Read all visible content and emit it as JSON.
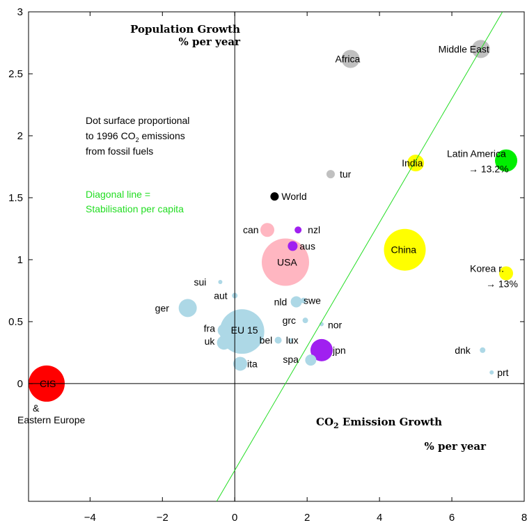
{
  "chart_data": {
    "type": "scatter",
    "xlim": [
      -5.7,
      8
    ],
    "ylim": [
      -0.95,
      3
    ],
    "x_ticks": [
      {
        "value": -4,
        "label": "−4"
      },
      {
        "value": -2,
        "label": "−2"
      },
      {
        "value": 0,
        "label": "0"
      },
      {
        "value": 2,
        "label": "2"
      },
      {
        "value": 4,
        "label": "4"
      },
      {
        "value": 6,
        "label": "6"
      },
      {
        "value": 8,
        "label": "8"
      }
    ],
    "y_ticks": [
      {
        "value": 0,
        "label": "0"
      },
      {
        "value": 0.5,
        "label": "0.5"
      },
      {
        "value": 1,
        "label": "1"
      },
      {
        "value": 1.5,
        "label": "1.5"
      },
      {
        "value": 2,
        "label": "2"
      },
      {
        "value": 2.5,
        "label": "2.5"
      },
      {
        "value": 3,
        "label": "3"
      }
    ],
    "y_axis_title": [
      "Population Growth",
      "% per year"
    ],
    "x_axis_title": {
      "prefix": "CO",
      "sub": "2",
      "rest": " Emission Growth",
      "line2": "% per year"
    },
    "note_lines": [
      {
        "text": "Dot surface proportional"
      },
      {
        "text": "to 1996 CO",
        "sub": "2",
        "after": " emissions"
      },
      {
        "text": "from fossil fuels"
      }
    ],
    "diagonal_note": [
      "Diagonal line =",
      "Stabilisation per capita"
    ],
    "diagonal_line": {
      "from": [
        -0.5,
        -0.95
      ],
      "to": [
        7.4,
        3
      ]
    },
    "grid": false,
    "colors": {
      "oecd": "#add8e6",
      "cis": "#ff0000",
      "asia": "#ffff00",
      "latin": "#00ee00",
      "africa_me": "#c0c0c0",
      "pacific": "#a020f0",
      "canusa": "#ffb6c1",
      "world": "#000000",
      "diagonal": "#22dd22"
    },
    "points": [
      {
        "name": "CIS",
        "x": -5.2,
        "y": 0.0,
        "r": 26,
        "color": "#ff0000"
      },
      {
        "name": "Middle East",
        "x": 6.8,
        "y": 2.7,
        "r": 13,
        "color": "#c0c0c0"
      },
      {
        "name": "Africa",
        "x": 3.2,
        "y": 2.62,
        "r": 13,
        "color": "#c0c0c0"
      },
      {
        "name": "Latin America",
        "x": 7.5,
        "y": 1.8,
        "r": 16,
        "color": "#00ee00"
      },
      {
        "name": "India",
        "x": 5.0,
        "y": 1.78,
        "r": 12,
        "color": "#ffff00"
      },
      {
        "name": "tur",
        "x": 2.65,
        "y": 1.69,
        "r": 6,
        "color": "#c0c0c0"
      },
      {
        "name": "World",
        "x": 1.1,
        "y": 1.51,
        "r": 6,
        "color": "#000000"
      },
      {
        "name": "can",
        "x": 0.9,
        "y": 1.24,
        "r": 10,
        "color": "#ffb6c1"
      },
      {
        "name": "nzl",
        "x": 1.75,
        "y": 1.24,
        "r": 5,
        "color": "#a020f0"
      },
      {
        "name": "aus",
        "x": 1.6,
        "y": 1.11,
        "r": 7,
        "color": "#a020f0"
      },
      {
        "name": "China",
        "x": 4.7,
        "y": 1.08,
        "r": 30,
        "color": "#ffff00"
      },
      {
        "name": "USA",
        "x": 1.4,
        "y": 0.98,
        "r": 34,
        "color": "#ffb6c1"
      },
      {
        "name": "Korea r.",
        "x": 7.5,
        "y": 0.89,
        "r": 10,
        "color": "#ffff00"
      },
      {
        "name": "sui",
        "x": -0.4,
        "y": 0.82,
        "r": 3,
        "color": "#add8e6"
      },
      {
        "name": "aut",
        "x": 0.0,
        "y": 0.71,
        "r": 4,
        "color": "#add8e6"
      },
      {
        "name": "ger",
        "x": -1.3,
        "y": 0.61,
        "r": 13,
        "color": "#add8e6"
      },
      {
        "name": "nld",
        "x": 1.7,
        "y": 0.66,
        "r": 8,
        "color": "#add8e6"
      },
      {
        "name": "swe",
        "x": 1.9,
        "y": 0.67,
        "r": 4,
        "color": "#add8e6"
      },
      {
        "name": "grc",
        "x": 1.95,
        "y": 0.51,
        "r": 4,
        "color": "#add8e6"
      },
      {
        "name": "nor",
        "x": 2.4,
        "y": 0.48,
        "r": 3,
        "color": "#add8e6"
      },
      {
        "name": "EU 15",
        "x": 0.2,
        "y": 0.42,
        "r": 32,
        "color": "#add8e6"
      },
      {
        "name": "fra",
        "x": -0.3,
        "y": 0.43,
        "r": 9,
        "color": "#add8e6"
      },
      {
        "name": "uk",
        "x": -0.3,
        "y": 0.33,
        "r": 10,
        "color": "#add8e6"
      },
      {
        "name": "bel",
        "x": 1.2,
        "y": 0.35,
        "r": 5,
        "color": "#add8e6"
      },
      {
        "name": "lux",
        "x": 1.55,
        "y": 0.35,
        "r": 3,
        "color": "#add8e6"
      },
      {
        "name": "jpn",
        "x": 2.4,
        "y": 0.27,
        "r": 16,
        "color": "#a020f0"
      },
      {
        "name": "spa",
        "x": 2.1,
        "y": 0.19,
        "r": 8,
        "color": "#add8e6"
      },
      {
        "name": "ita",
        "x": 0.15,
        "y": 0.16,
        "r": 10,
        "color": "#add8e6"
      },
      {
        "name": "dnk",
        "x": 6.85,
        "y": 0.27,
        "r": 4,
        "color": "#add8e6"
      },
      {
        "name": "prt",
        "x": 7.1,
        "y": 0.09,
        "r": 3,
        "color": "#add8e6"
      }
    ],
    "labels": [
      {
        "point": "CIS",
        "text": "CIS",
        "dx": -10,
        "dy": 5,
        "anchor": "start"
      },
      {
        "point": "CIS",
        "text": "&",
        "dx": -20,
        "dy": 40,
        "anchor": "start"
      },
      {
        "point": "CIS",
        "text": "Eastern Europe",
        "dx": -42,
        "dy": 57,
        "anchor": "start"
      },
      {
        "point": "Middle East",
        "text": "Middle East",
        "dx": -61,
        "dy": 5,
        "anchor": "start"
      },
      {
        "point": "Africa",
        "text": "Africa",
        "dx": -22,
        "dy": 5,
        "anchor": "start"
      },
      {
        "point": "Latin America",
        "text": "Latin America",
        "dx": -85,
        "dy": -5,
        "anchor": "start"
      },
      {
        "point": "Latin America",
        "text": "→ 13.2%",
        "dx": -54,
        "dy": 17,
        "anchor": "start"
      },
      {
        "point": "India",
        "text": "India",
        "dx": -20,
        "dy": 5,
        "anchor": "start"
      },
      {
        "point": "tur",
        "text": "tur",
        "dx": 13,
        "dy": 5,
        "anchor": "start"
      },
      {
        "point": "World",
        "text": "World",
        "dx": 10,
        "dy": 5,
        "anchor": "start"
      },
      {
        "point": "can",
        "text": "can",
        "dx": -35,
        "dy": 5,
        "anchor": "start"
      },
      {
        "point": "nzl",
        "text": "nzl",
        "dx": 14,
        "dy": 5,
        "anchor": "start"
      },
      {
        "point": "aus",
        "text": "aus",
        "dx": 10,
        "dy": 5,
        "anchor": "start"
      },
      {
        "point": "China",
        "text": "China",
        "dx": -20,
        "dy": 5,
        "anchor": "start"
      },
      {
        "point": "USA",
        "text": "USA",
        "dx": -12,
        "dy": 5,
        "anchor": "start"
      },
      {
        "point": "Korea r.",
        "text": "Korea r.",
        "dx": -52,
        "dy": -2,
        "anchor": "start"
      },
      {
        "point": "Korea r.",
        "text": "→ 13%",
        "dx": -29,
        "dy": 20,
        "anchor": "start"
      },
      {
        "point": "sui",
        "text": "sui",
        "dx": -38,
        "dy": 5,
        "anchor": "start"
      },
      {
        "point": "aut",
        "text": "aut",
        "dx": -30,
        "dy": 5,
        "anchor": "start"
      },
      {
        "point": "ger",
        "text": "ger",
        "dx": -47,
        "dy": 5,
        "anchor": "start"
      },
      {
        "point": "nld",
        "text": "nld",
        "dx": -32,
        "dy": 5,
        "anchor": "start"
      },
      {
        "point": "swe",
        "text": "swe",
        "dx": 0,
        "dy": 5,
        "anchor": "start"
      },
      {
        "point": "grc",
        "text": "grc",
        "dx": -33,
        "dy": 5,
        "anchor": "start"
      },
      {
        "point": "nor",
        "text": "nor",
        "dx": 9,
        "dy": 6,
        "anchor": "start"
      },
      {
        "point": "EU 15",
        "text": "EU 15",
        "dx": -16,
        "dy": 3,
        "anchor": "start"
      },
      {
        "point": "fra",
        "text": "fra",
        "dx": -29,
        "dy": 2,
        "anchor": "start"
      },
      {
        "point": "uk",
        "text": "uk",
        "dx": -28,
        "dy": 3,
        "anchor": "start"
      },
      {
        "point": "bel",
        "text": "bel",
        "dx": -27,
        "dy": 5,
        "anchor": "start"
      },
      {
        "point": "lux",
        "text": "lux",
        "dx": -7,
        "dy": 5,
        "anchor": "start"
      },
      {
        "point": "jpn",
        "text": "jpn",
        "dx": 16,
        "dy": 5,
        "anchor": "start"
      },
      {
        "point": "spa",
        "text": "spa",
        "dx": -40,
        "dy": 4,
        "anchor": "start"
      },
      {
        "point": "ita",
        "text": "ita",
        "dx": 10,
        "dy": 5,
        "anchor": "start"
      },
      {
        "point": "dnk",
        "text": "dnk",
        "dx": -40,
        "dy": 5,
        "anchor": "start"
      },
      {
        "point": "prt",
        "text": "prt",
        "dx": 8,
        "dy": 5,
        "anchor": "start"
      }
    ]
  }
}
